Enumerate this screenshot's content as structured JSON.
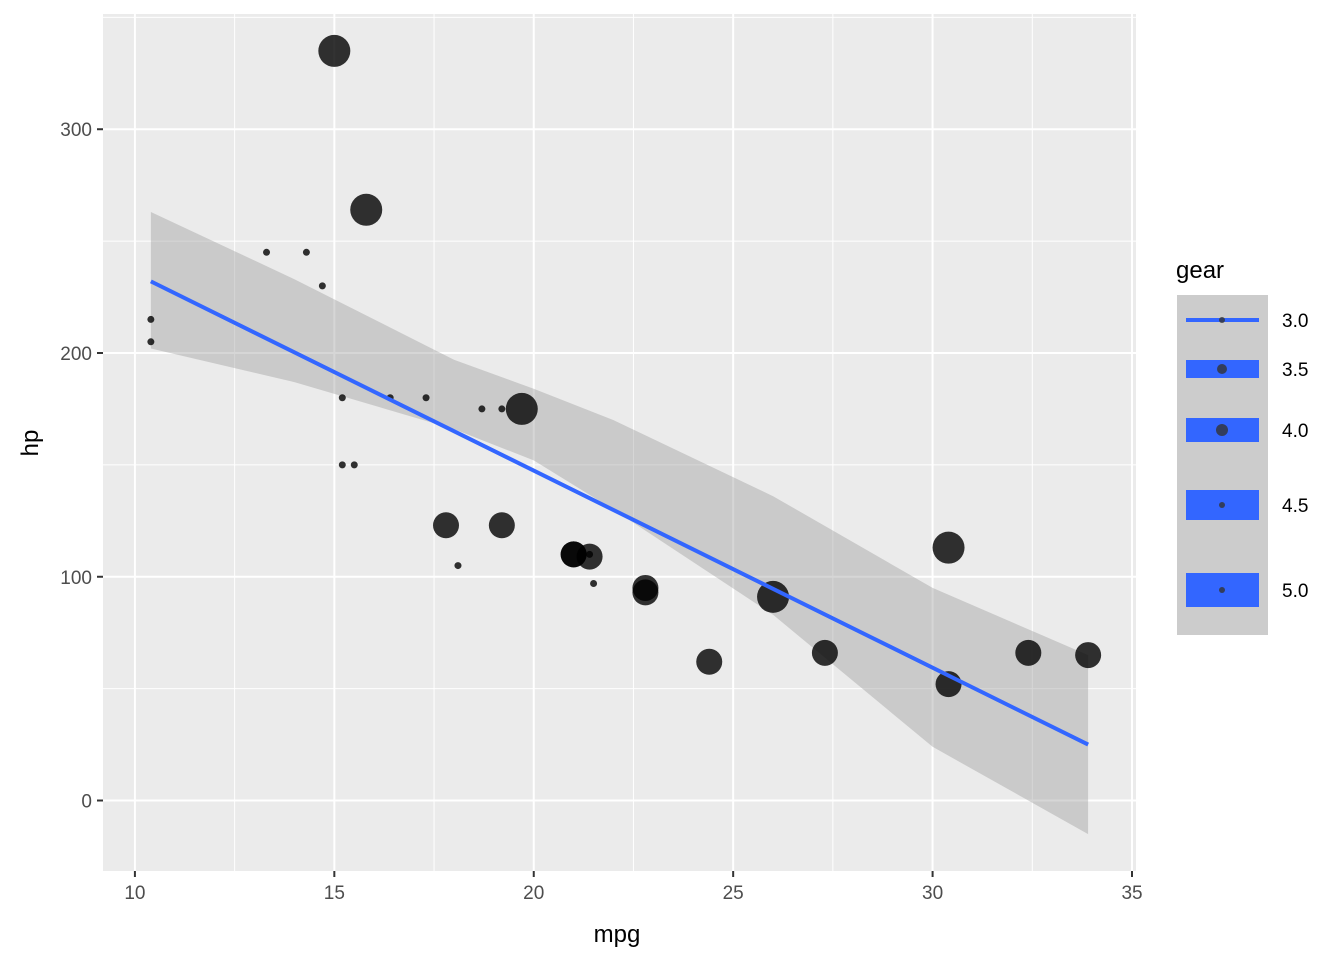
{
  "chart_data": {
    "type": "scatter",
    "xlabel": "mpg",
    "ylabel": "hp",
    "xlim": [
      9.2,
      35.1
    ],
    "ylim": [
      -31.5,
      351.5
    ],
    "x_ticks": [
      10,
      15,
      20,
      25,
      30,
      35
    ],
    "y_ticks": [
      0,
      100,
      200,
      300
    ],
    "x_tick_labels": [
      "10",
      "15",
      "20",
      "25",
      "30",
      "35"
    ],
    "y_tick_labels": [
      "0",
      "100",
      "200",
      "300"
    ],
    "grid": true,
    "legend": {
      "title": "gear",
      "position": "right",
      "entries": [
        "3.0",
        "3.5",
        "4.0",
        "4.5",
        "5.0"
      ]
    },
    "points": [
      {
        "x": 15.0,
        "y": 335,
        "gear": 5
      },
      {
        "x": 15.8,
        "y": 264,
        "gear": 5
      },
      {
        "x": 19.7,
        "y": 175,
        "gear": 5
      },
      {
        "x": 26.0,
        "y": 91,
        "gear": 5
      },
      {
        "x": 30.4,
        "y": 113,
        "gear": 5
      },
      {
        "x": 21.0,
        "y": 110,
        "gear": 4
      },
      {
        "x": 21.0,
        "y": 110,
        "gear": 4
      },
      {
        "x": 22.8,
        "y": 93,
        "gear": 4
      },
      {
        "x": 24.4,
        "y": 62,
        "gear": 4
      },
      {
        "x": 22.8,
        "y": 95,
        "gear": 4
      },
      {
        "x": 19.2,
        "y": 123,
        "gear": 4
      },
      {
        "x": 17.8,
        "y": 123,
        "gear": 4
      },
      {
        "x": 32.4,
        "y": 66,
        "gear": 4
      },
      {
        "x": 30.4,
        "y": 52,
        "gear": 4
      },
      {
        "x": 33.9,
        "y": 65,
        "gear": 4
      },
      {
        "x": 27.3,
        "y": 66,
        "gear": 4
      },
      {
        "x": 21.4,
        "y": 109,
        "gear": 4
      },
      {
        "x": 21.4,
        "y": 110,
        "gear": 3
      },
      {
        "x": 18.7,
        "y": 175,
        "gear": 3
      },
      {
        "x": 18.1,
        "y": 105,
        "gear": 3
      },
      {
        "x": 14.3,
        "y": 245,
        "gear": 3
      },
      {
        "x": 16.4,
        "y": 180,
        "gear": 3
      },
      {
        "x": 17.3,
        "y": 180,
        "gear": 3
      },
      {
        "x": 15.2,
        "y": 180,
        "gear": 3
      },
      {
        "x": 10.4,
        "y": 205,
        "gear": 3
      },
      {
        "x": 10.4,
        "y": 215,
        "gear": 3
      },
      {
        "x": 14.7,
        "y": 230,
        "gear": 3
      },
      {
        "x": 21.5,
        "y": 97,
        "gear": 3
      },
      {
        "x": 15.5,
        "y": 150,
        "gear": 3
      },
      {
        "x": 15.2,
        "y": 150,
        "gear": 3
      },
      {
        "x": 13.3,
        "y": 245,
        "gear": 3
      },
      {
        "x": 19.2,
        "y": 175,
        "gear": 3
      }
    ],
    "smooth": {
      "method": "lm",
      "color": "#3366FF",
      "fill": "#999999",
      "x_range": [
        10.4,
        33.9
      ],
      "fit": [
        [
          10.4,
          232
        ],
        [
          33.9,
          25
        ]
      ],
      "band_upper": [
        [
          10.4,
          263
        ],
        [
          14,
          233
        ],
        [
          18,
          197
        ],
        [
          20,
          184
        ],
        [
          22,
          170
        ],
        [
          26,
          136
        ],
        [
          30,
          95
        ],
        [
          33.9,
          65
        ]
      ],
      "band_lower": [
        [
          10.4,
          202
        ],
        [
          14,
          187
        ],
        [
          18,
          166
        ],
        [
          20,
          152
        ],
        [
          22,
          130
        ],
        [
          26,
          83
        ],
        [
          30,
          24
        ],
        [
          33.9,
          -15
        ]
      ]
    },
    "colors": {
      "panel_bg": "#EBEBEB",
      "grid": "#FFFFFF",
      "point": "#000000",
      "line": "#3366FF",
      "band": "#999999"
    }
  }
}
